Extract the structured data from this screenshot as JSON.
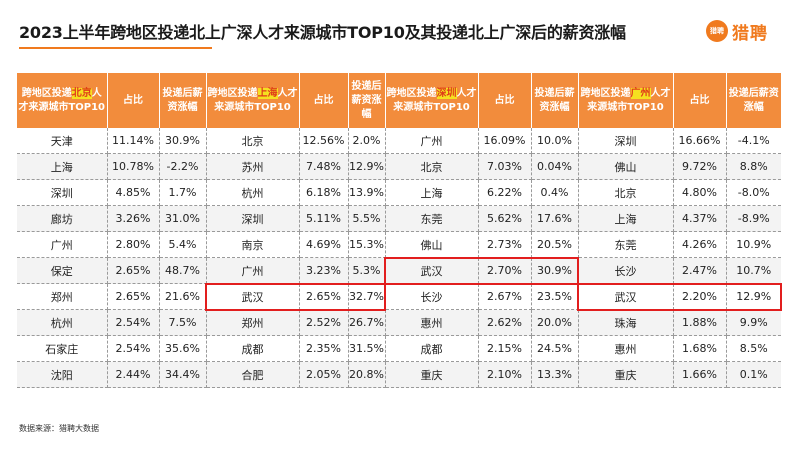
{
  "title": "2023上半年跨地区投递北上广深人才来源城市TOP10及其投递北上广深后的薪资涨幅",
  "logo": {
    "mark_text": "猎聘",
    "name": "猎聘"
  },
  "colors": {
    "accent": "#f07a1e",
    "header_bg": "#f28c3c",
    "highlight_box": "#e21e1e",
    "city_highlight_bg": "#f5e020"
  },
  "headers": {
    "group_prefix": "跨地区投递",
    "group_suffix": "人才来源城市TOP10",
    "share": "占比",
    "raise": "投递后薪资涨幅",
    "cities": [
      "北京",
      "上海",
      "深圳",
      "广州"
    ]
  },
  "rows": [
    [
      [
        "天津",
        "11.14%",
        "30.9%"
      ],
      [
        "北京",
        "12.56%",
        "2.0%"
      ],
      [
        "广州",
        "16.09%",
        "10.0%"
      ],
      [
        "深圳",
        "16.66%",
        "-4.1%"
      ]
    ],
    [
      [
        "上海",
        "10.78%",
        "-2.2%"
      ],
      [
        "苏州",
        "7.48%",
        "12.9%"
      ],
      [
        "北京",
        "7.03%",
        "0.04%"
      ],
      [
        "佛山",
        "9.72%",
        "8.8%"
      ]
    ],
    [
      [
        "深圳",
        "4.85%",
        "1.7%"
      ],
      [
        "杭州",
        "6.18%",
        "13.9%"
      ],
      [
        "上海",
        "6.22%",
        "0.4%"
      ],
      [
        "北京",
        "4.80%",
        "-8.0%"
      ]
    ],
    [
      [
        "廊坊",
        "3.26%",
        "31.0%"
      ],
      [
        "深圳",
        "5.11%",
        "5.5%"
      ],
      [
        "东莞",
        "5.62%",
        "17.6%"
      ],
      [
        "上海",
        "4.37%",
        "-8.9%"
      ]
    ],
    [
      [
        "广州",
        "2.80%",
        "5.4%"
      ],
      [
        "南京",
        "4.69%",
        "15.3%"
      ],
      [
        "佛山",
        "2.73%",
        "20.5%"
      ],
      [
        "东莞",
        "4.26%",
        "10.9%"
      ]
    ],
    [
      [
        "保定",
        "2.65%",
        "48.7%"
      ],
      [
        "广州",
        "3.23%",
        "5.3%"
      ],
      [
        "武汉",
        "2.70%",
        "30.9%"
      ],
      [
        "长沙",
        "2.47%",
        "10.7%"
      ]
    ],
    [
      [
        "郑州",
        "2.65%",
        "21.6%"
      ],
      [
        "武汉",
        "2.65%",
        "32.7%"
      ],
      [
        "长沙",
        "2.67%",
        "23.5%"
      ],
      [
        "武汉",
        "2.20%",
        "12.9%"
      ]
    ],
    [
      [
        "杭州",
        "2.54%",
        "7.5%"
      ],
      [
        "郑州",
        "2.52%",
        "26.7%"
      ],
      [
        "惠州",
        "2.62%",
        "20.0%"
      ],
      [
        "珠海",
        "1.88%",
        "9.9%"
      ]
    ],
    [
      [
        "石家庄",
        "2.54%",
        "35.6%"
      ],
      [
        "成都",
        "2.35%",
        "31.5%"
      ],
      [
        "成都",
        "2.15%",
        "24.5%"
      ],
      [
        "惠州",
        "1.68%",
        "8.5%"
      ]
    ],
    [
      [
        "沈阳",
        "2.44%",
        "34.4%"
      ],
      [
        "合肥",
        "2.05%",
        "20.8%"
      ],
      [
        "重庆",
        "2.10%",
        "13.3%"
      ],
      [
        "重庆",
        "1.66%",
        "0.1%"
      ]
    ]
  ],
  "highlights": [
    {
      "row": 6,
      "group": 1,
      "city": "武汉"
    },
    {
      "row": 5,
      "group": 2,
      "city": "武汉"
    },
    {
      "row": 6,
      "group": 3,
      "city": "武汉"
    }
  ],
  "source": "数据来源：猎聘大数据"
}
